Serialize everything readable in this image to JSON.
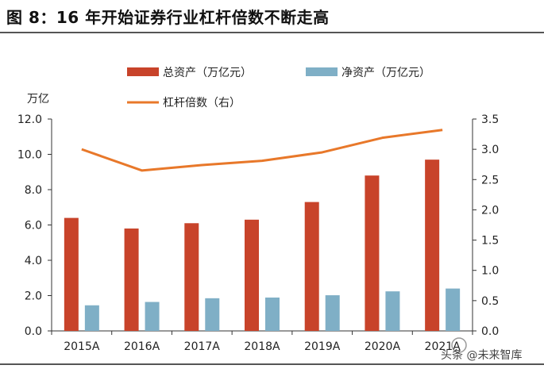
{
  "title": "图 8：16 年开始证券行业杠杆倍数不断走高",
  "watermark": "头条 @未来智库",
  "chart_data": {
    "type": "bar",
    "categories": [
      "2015A",
      "2016A",
      "2017A",
      "2018A",
      "2019A",
      "2020A",
      "2021A"
    ],
    "series": [
      {
        "name": "总资产（万亿元）",
        "type": "bar",
        "axis": "left",
        "color": "#C8432A",
        "values": [
          6.4,
          5.8,
          6.1,
          6.3,
          7.3,
          8.8,
          9.7
        ]
      },
      {
        "name": "净资产（万亿元）",
        "type": "bar",
        "axis": "left",
        "color": "#7FAFC6",
        "values": [
          1.45,
          1.64,
          1.85,
          1.89,
          2.02,
          2.24,
          2.4
        ]
      },
      {
        "name": "杠杆倍数（右）",
        "type": "line",
        "axis": "right",
        "color": "#E8782A",
        "values": [
          3.0,
          2.65,
          2.74,
          2.81,
          2.95,
          3.19,
          3.32
        ]
      }
    ],
    "ylabel_left": "万亿",
    "ylim_left": [
      0,
      12
    ],
    "yticks_left": [
      "0.0",
      "2.0",
      "4.0",
      "6.0",
      "8.0",
      "10.0",
      "12.0"
    ],
    "ylim_right": [
      0,
      3.5
    ],
    "yticks_right": [
      "0.0",
      "0.5",
      "1.0",
      "1.5",
      "2.0",
      "2.5",
      "3.0",
      "3.5"
    ],
    "grid": false,
    "legend_position": "top"
  }
}
